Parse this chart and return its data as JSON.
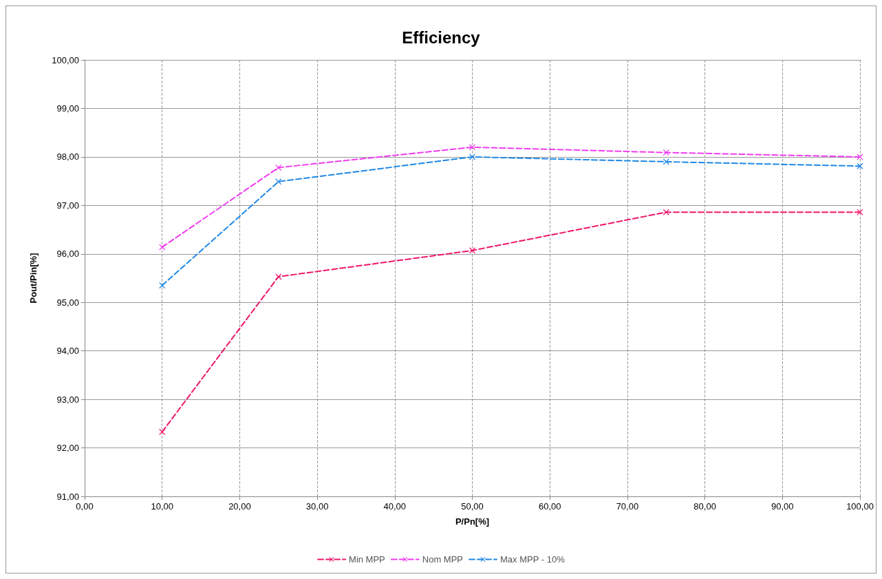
{
  "chart_data": {
    "type": "line",
    "title": "Efficiency",
    "xlabel": "P/Pn[%]",
    "ylabel": "Pout/Pin[%]",
    "x": [
      10,
      25,
      50,
      75,
      100
    ],
    "series": [
      {
        "name": "Min MPP",
        "color": "#f0166a",
        "values": [
          92.33,
          95.53,
          96.07,
          96.86,
          96.86
        ]
      },
      {
        "name": "Nom MPP",
        "color": "#f03cf0",
        "values": [
          96.14,
          97.78,
          98.2,
          98.09,
          98.0
        ]
      },
      {
        "name": "Max MPP - 10%",
        "color": "#1e88e5",
        "values": [
          95.35,
          97.49,
          98.0,
          97.9,
          97.81
        ]
      }
    ],
    "xlim": [
      0,
      100
    ],
    "xticks": [
      {
        "value": 0,
        "label": "0,00"
      },
      {
        "value": 10,
        "label": "10,00"
      },
      {
        "value": 20,
        "label": "20,00"
      },
      {
        "value": 30,
        "label": "30,00"
      },
      {
        "value": 40,
        "label": "40,00"
      },
      {
        "value": 50,
        "label": "50,00"
      },
      {
        "value": 60,
        "label": "60,00"
      },
      {
        "value": 70,
        "label": "70,00"
      },
      {
        "value": 80,
        "label": "80,00"
      },
      {
        "value": 90,
        "label": "90,00"
      },
      {
        "value": 100,
        "label": "100,00"
      }
    ],
    "ylim": [
      91,
      100
    ],
    "yticks": [
      {
        "value": 91,
        "label": "91,00"
      },
      {
        "value": 92,
        "label": "92,00"
      },
      {
        "value": 93,
        "label": "93,00"
      },
      {
        "value": 94,
        "label": "94,00"
      },
      {
        "value": 95,
        "label": "95,00"
      },
      {
        "value": 96,
        "label": "96,00"
      },
      {
        "value": 97,
        "label": "97,00"
      },
      {
        "value": 98,
        "label": "98,00"
      },
      {
        "value": 99,
        "label": "99,00"
      },
      {
        "value": 100,
        "label": "100,00"
      }
    ],
    "grid": true,
    "legend": "bottom",
    "marker": "cross",
    "line_style": "dashed"
  }
}
